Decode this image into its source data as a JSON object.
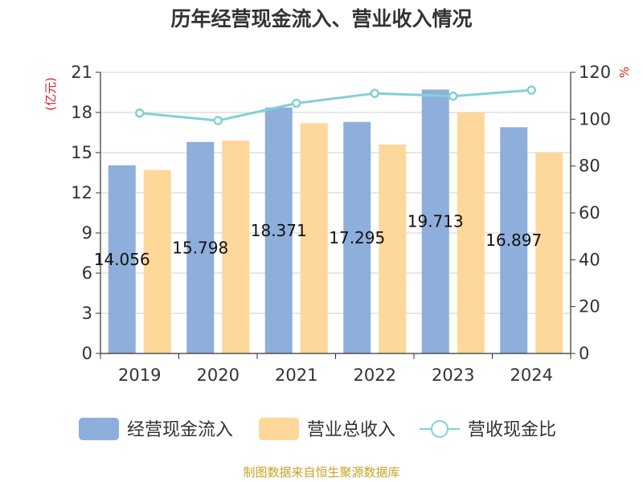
{
  "chart_data": {
    "type": "bar",
    "title": "历年经营现金流入、营业收入情况",
    "categories": [
      "2019",
      "2020",
      "2021",
      "2022",
      "2023",
      "2024"
    ],
    "series": [
      {
        "name": "经营现金流入",
        "kind": "bar",
        "axis": "left",
        "color": "#8eaedb",
        "values": [
          14.056,
          15.798,
          18.371,
          17.295,
          19.713,
          16.897
        ],
        "labels": [
          "14.056",
          "15.798",
          "18.371",
          "17.295",
          "19.713",
          "16.897"
        ]
      },
      {
        "name": "营业总收入",
        "kind": "bar",
        "axis": "left",
        "color": "#fdd89a",
        "values": [
          13.7,
          15.9,
          17.2,
          15.6,
          18.0,
          15.0
        ]
      },
      {
        "name": "营收现金比",
        "kind": "line",
        "axis": "right",
        "color": "#84d0d6",
        "values": [
          102.6,
          99.4,
          106.8,
          111.0,
          109.8,
          112.4
        ]
      }
    ],
    "y_left": {
      "unit": "(亿元)",
      "ylim": [
        0,
        21
      ],
      "ticks": [
        0,
        3,
        6,
        9,
        12,
        15,
        18,
        21
      ]
    },
    "y_right": {
      "unit": "%",
      "ylim": [
        0,
        120
      ],
      "ticks": [
        0,
        20,
        40,
        60,
        80,
        100,
        120
      ]
    },
    "grid": true,
    "legend_position": "bottom"
  },
  "footer": {
    "source": "制图数据来自恒生聚源数据库"
  }
}
